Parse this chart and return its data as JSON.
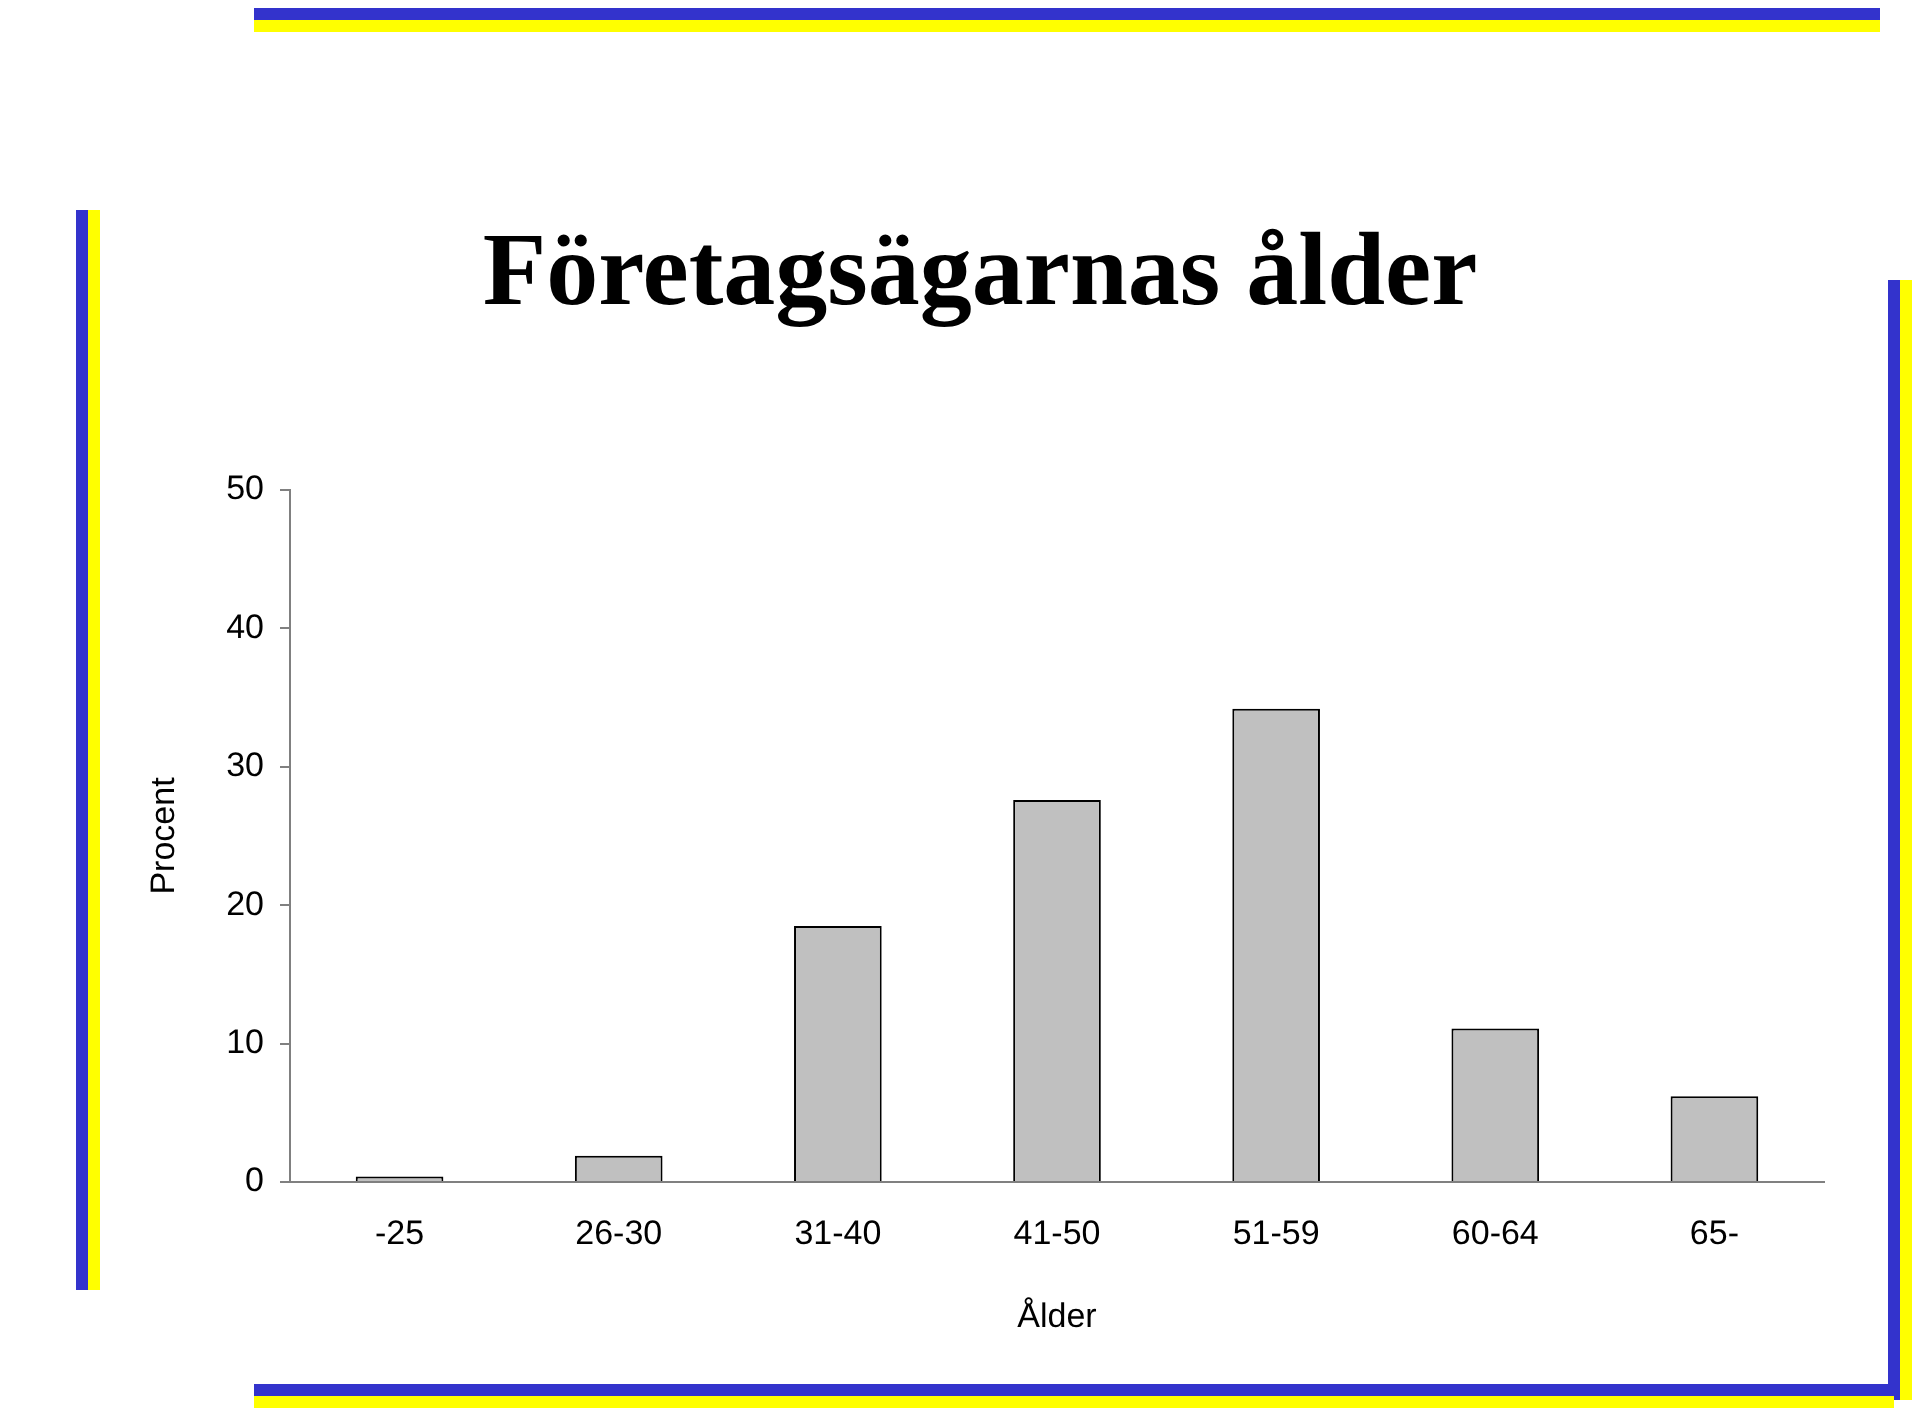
{
  "chart_data": {
    "type": "bar",
    "title": "Företagsägarnas ålder",
    "xlabel": "Ålder",
    "ylabel": "Procent",
    "categories": [
      "-25",
      "26-30",
      "31-40",
      "41-50",
      "51-59",
      "60-64",
      "65-"
    ],
    "values": [
      0.4,
      1.9,
      18.5,
      27.6,
      34.2,
      11.1,
      6.2
    ],
    "color": "#c0c0c0",
    "ylim": [
      0,
      50
    ],
    "yticks": [
      0,
      10,
      20,
      30,
      40,
      50
    ],
    "grid": false,
    "legend": false
  }
}
